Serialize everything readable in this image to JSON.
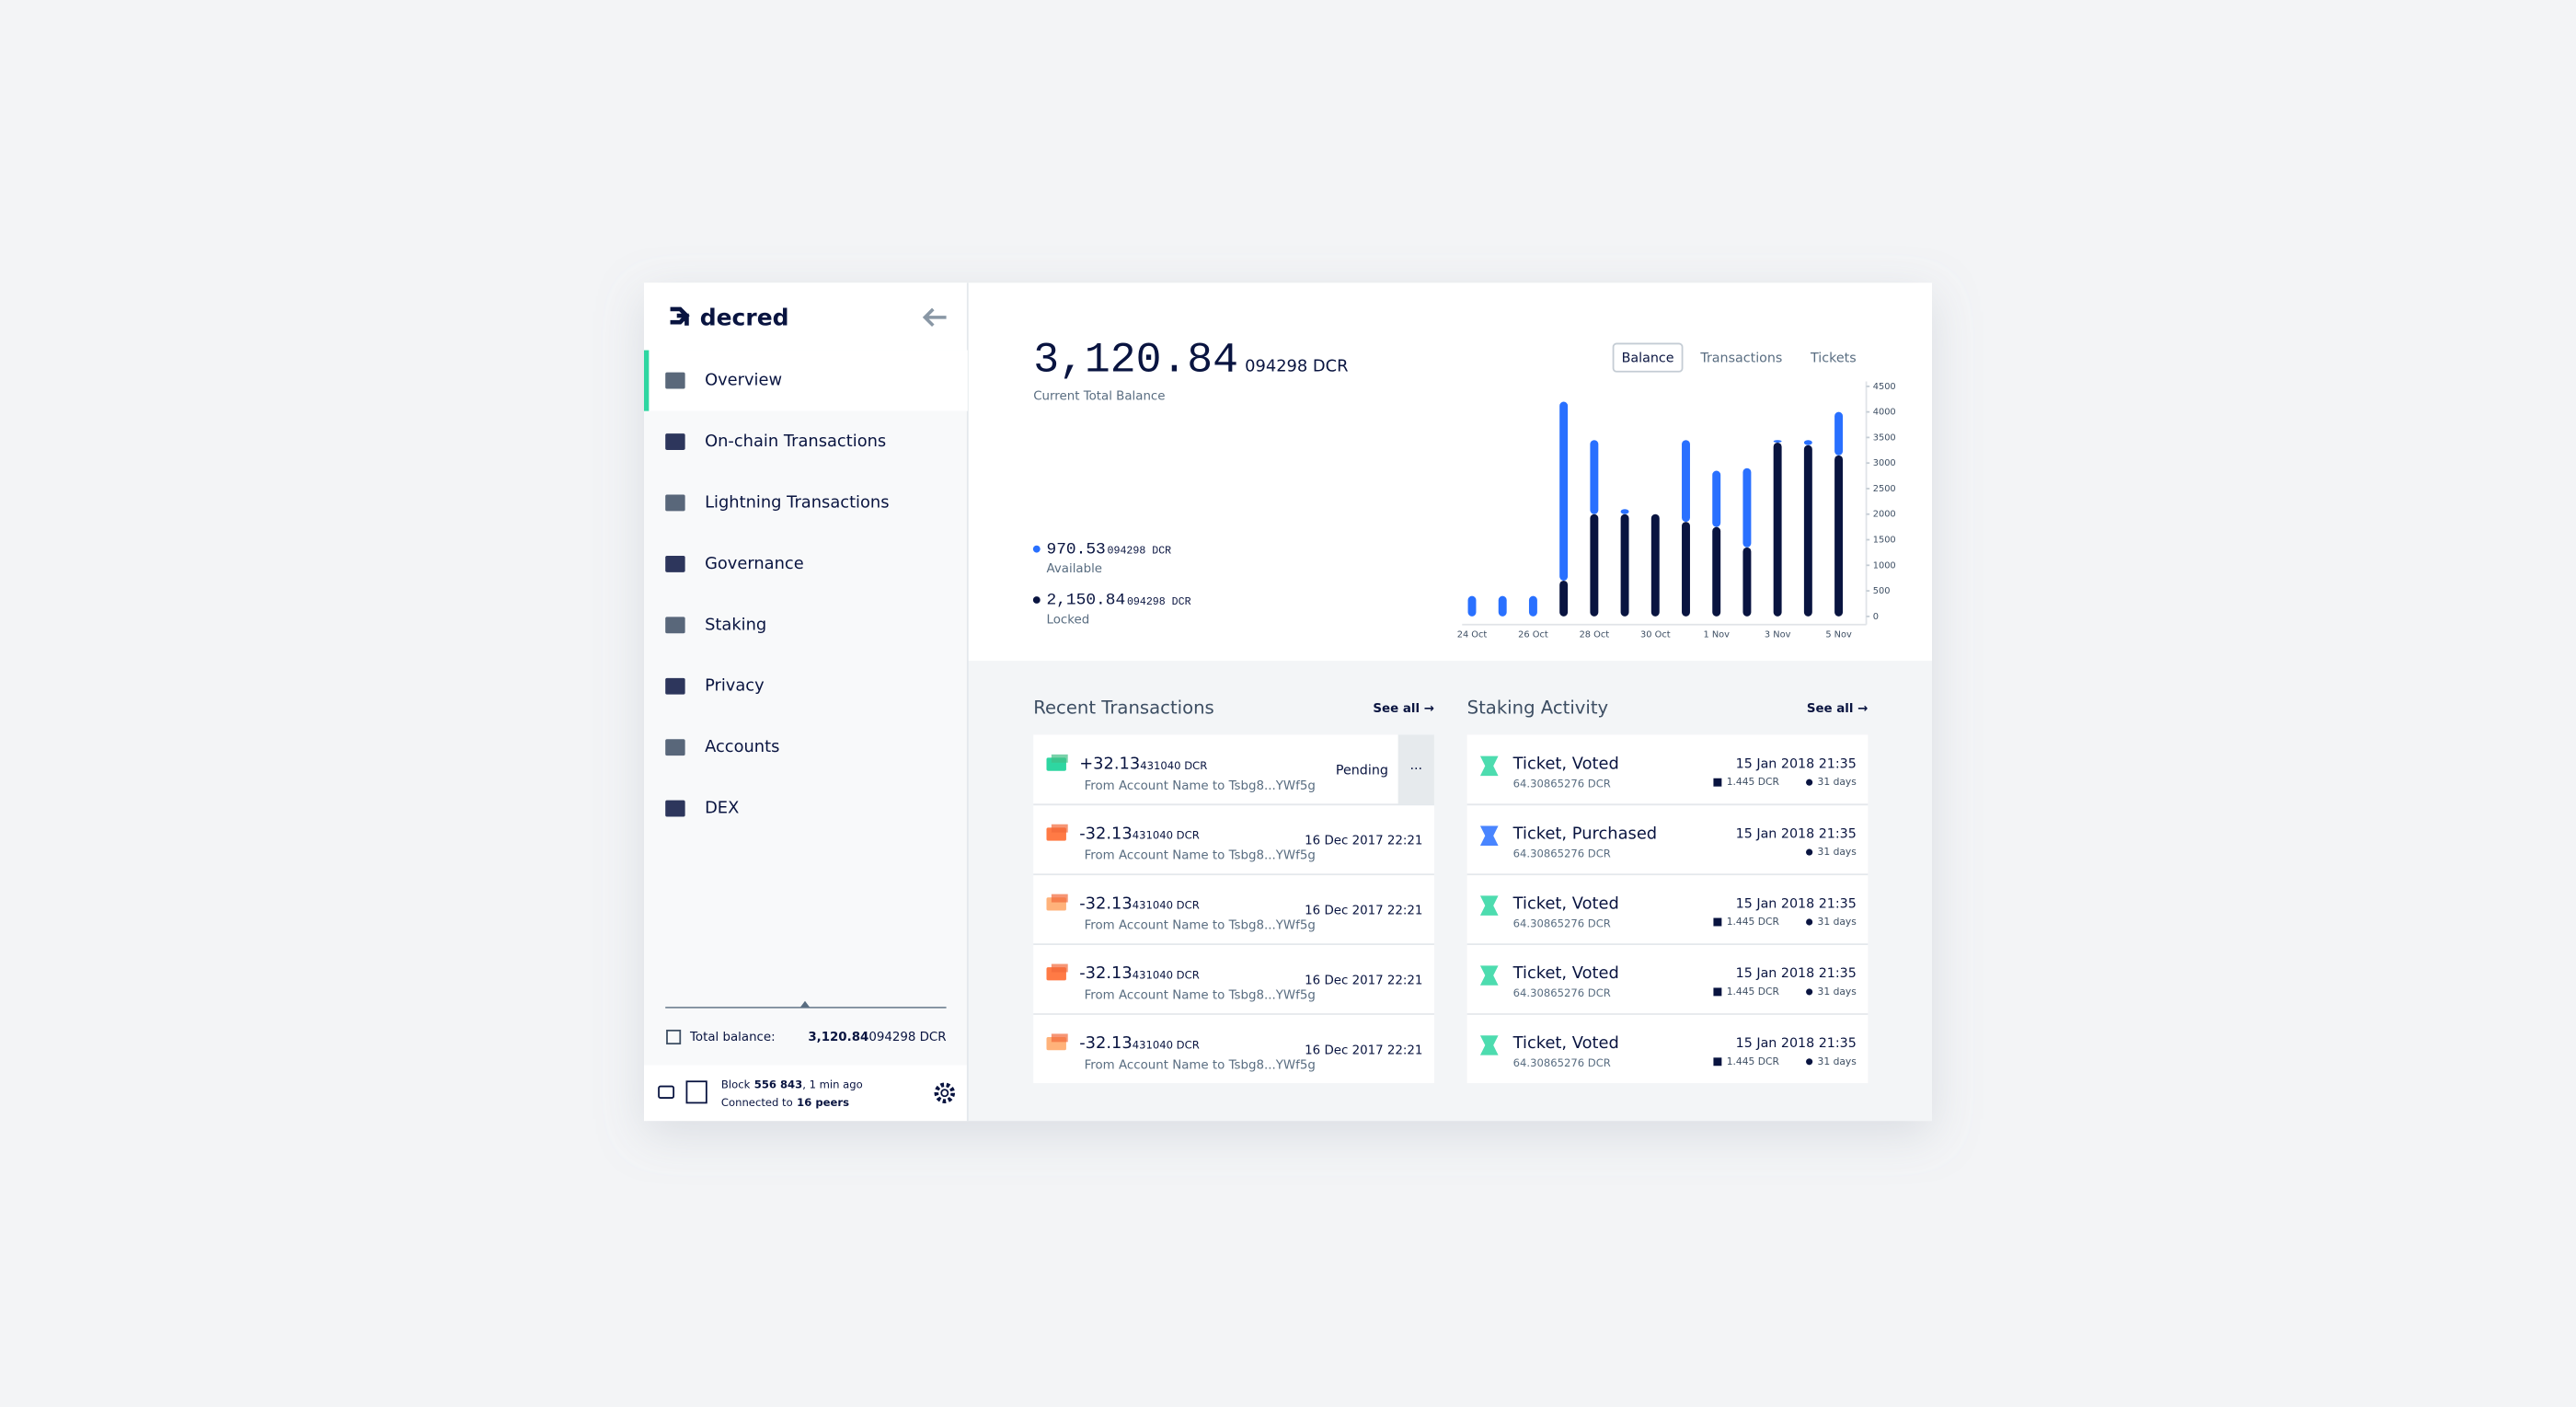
{
  "sidebar": {
    "logo": "decred",
    "nav": [
      "Overview",
      "On-chain Transactions",
      "Lightning Transactions",
      "Governance",
      "Staking",
      "Privacy",
      "Accounts",
      "DEX"
    ],
    "total_balance_label": "Total balance:",
    "total_balance_main": "3,120.84",
    "total_balance_decimals": "094298 DCR",
    "block_prefix": "Block",
    "block_number": "556 843",
    "block_suffix": ", 1 min ago",
    "peers_prefix": "Connected to",
    "peers_count": "16 peers"
  },
  "balance": {
    "main": "3,120.84",
    "decimals": "094298 DCR",
    "label": "Current Total Balance",
    "available_main": "970.53",
    "available_decimals": "094298 DCR",
    "locked_main": "2,150.84",
    "locked_decimals": "094298 DCR"
  },
  "tabs": [
    "Balance",
    "Transactions",
    "Tickets"
  ],
  "chart_data": {
    "type": "stacked_bar",
    "categories": [
      "24 Oct",
      null,
      "26 Oct",
      null,
      "28 Oct",
      null,
      "30 Oct",
      null,
      "1 Nov",
      null,
      "3 Nov",
      null,
      "5 Nov"
    ],
    "series": [
      {
        "name": "Locked",
        "color": "#091440",
        "values": [
          0,
          0,
          0,
          700,
          2000,
          2000,
          2000,
          1850,
          1750,
          1350,
          3400,
          3350,
          3150
        ]
      },
      {
        "name": "Available",
        "color": "#2970ff",
        "values": [
          400,
          400,
          400,
          3500,
          1450,
          100,
          0,
          1600,
          1100,
          1550,
          50,
          100,
          850
        ]
      }
    ],
    "ylim": [
      0,
      4500
    ],
    "yticks": [
      0,
      500,
      1000,
      1500,
      2000,
      2500,
      3000,
      3500,
      4000,
      4500
    ]
  },
  "recent_transactions": {
    "title": "Recent Transactions",
    "see_all": "See all →",
    "more": "···",
    "items": [
      {
        "amount": "+32.13",
        "decimals": "431040 DCR",
        "description": "From Account Name to Tsbg8...YWf5g",
        "status": "Pending"
      },
      {
        "amount": "-32.13",
        "decimals": "431040 DCR",
        "description": "From Account Name to Tsbg8...YWf5g",
        "status": "16 Dec 2017 22:21"
      },
      {
        "amount": "-32.13",
        "decimals": "431040 DCR",
        "description": "From Account Name to Tsbg8...YWf5g",
        "status": "16 Dec 2017 22:21"
      },
      {
        "amount": "-32.13",
        "decimals": "431040 DCR",
        "description": "From Account Name to Tsbg8...YWf5g",
        "status": "16 Dec 2017 22:21"
      },
      {
        "amount": "-32.13",
        "decimals": "431040 DCR",
        "description": "From Account Name to Tsbg8...YWf5g",
        "status": "16 Dec 2017 22:21"
      }
    ]
  },
  "staking_activity": {
    "title": "Staking Activity",
    "see_all": "See all →",
    "items": [
      {
        "title": "Ticket, Voted",
        "amount": "64.30865276 DCR",
        "date": "15 Jan 2018 21:35",
        "fee": "1.445 DCR",
        "days": "31 days"
      },
      {
        "title": "Ticket, Purchased",
        "amount": "64.30865276 DCR",
        "date": "15 Jan 2018 21:35",
        "days": "31 days"
      },
      {
        "title": "Ticket, Voted",
        "amount": "64.30865276 DCR",
        "date": "15 Jan 2018 21:35",
        "fee": "1.445 DCR",
        "days": "31 days"
      },
      {
        "title": "Ticket, Voted",
        "amount": "64.30865276 DCR",
        "date": "15 Jan 2018 21:35",
        "fee": "1.445 DCR",
        "days": "31 days"
      },
      {
        "title": "Ticket, Voted",
        "amount": "64.30865276 DCR",
        "date": "15 Jan 2018 21:35",
        "fee": "1.445 DCR",
        "days": "31 days"
      }
    ]
  }
}
